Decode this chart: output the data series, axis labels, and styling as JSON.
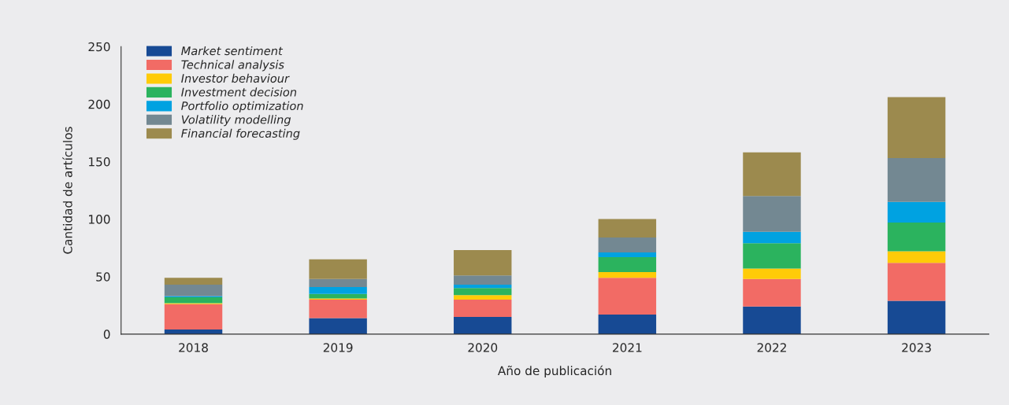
{
  "chart_data": {
    "type": "bar",
    "stacked": true,
    "xlabel": "Año de publicación",
    "ylabel": "Cantidad de artículos",
    "categories": [
      "2018",
      "2019",
      "2020",
      "2021",
      "2022",
      "2023"
    ],
    "series": [
      {
        "name": "Market sentiment",
        "color": "#174a94",
        "values": [
          4,
          14,
          15,
          17,
          24,
          29
        ]
      },
      {
        "name": "Technical analysis",
        "color": "#f26b65",
        "values": [
          22,
          16,
          15,
          32,
          24,
          33
        ]
      },
      {
        "name": "Investor behaviour",
        "color": "#ffcb08",
        "values": [
          1,
          1,
          4,
          5,
          9,
          10
        ]
      },
      {
        "name": "Investment decision",
        "color": "#2bb35e",
        "values": [
          5,
          4,
          6,
          13,
          22,
          25
        ]
      },
      {
        "name": "Portfolio optimization",
        "color": "#00a2e1",
        "values": [
          1,
          6,
          3,
          4,
          10,
          18
        ]
      },
      {
        "name": "Volatility modelling",
        "color": "#738892",
        "values": [
          10,
          7,
          8,
          13,
          31,
          38
        ]
      },
      {
        "name": "Financial forecasting",
        "color": "#9c8a4e",
        "values": [
          6,
          17,
          22,
          16,
          38,
          53
        ]
      }
    ],
    "ylim": [
      0,
      250
    ],
    "yticks": [
      0,
      50,
      100,
      150,
      200,
      250
    ],
    "grid": false,
    "legend": "top left"
  }
}
